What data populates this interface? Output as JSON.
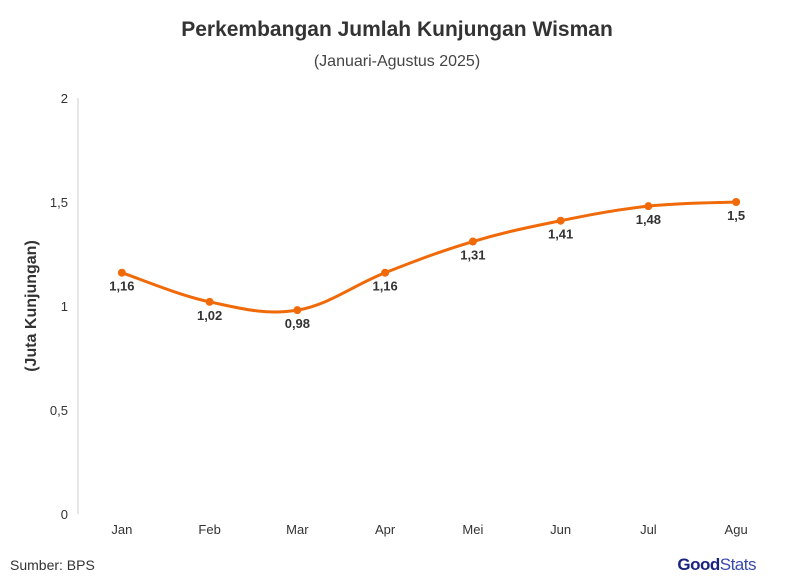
{
  "header": {
    "title": "Perkembangan Jumlah Kunjungan Wisman",
    "subtitle": "(Januari-Agustus 2025)"
  },
  "footer": {
    "source": "Sumber: BPS",
    "brand_bold": "Good",
    "brand_light": "Stats"
  },
  "colors": {
    "line": "#f06a0a",
    "axis": "#cccccc",
    "text": "#333333"
  },
  "chart_data": {
    "type": "line",
    "title": "Perkembangan Jumlah Kunjungan Wisman",
    "subtitle": "(Januari-Agustus 2025)",
    "xlabel": "",
    "ylabel": "(Juta Kunjungan)",
    "categories": [
      "Jan",
      "Feb",
      "Mar",
      "Apr",
      "Mei",
      "Jun",
      "Jul",
      "Agu"
    ],
    "values": [
      1.16,
      1.02,
      0.98,
      1.16,
      1.31,
      1.41,
      1.48,
      1.5
    ],
    "data_labels": [
      "1,16",
      "1,02",
      "0,98",
      "1,16",
      "1,31",
      "1,41",
      "1,48",
      "1,5"
    ],
    "ylim": [
      0,
      2
    ],
    "yticks": [
      0,
      0.5,
      1,
      1.5,
      2
    ],
    "ytick_labels": [
      "0",
      "0,5",
      "1",
      "1,5",
      "2"
    ],
    "grid": false,
    "smooth": true
  }
}
